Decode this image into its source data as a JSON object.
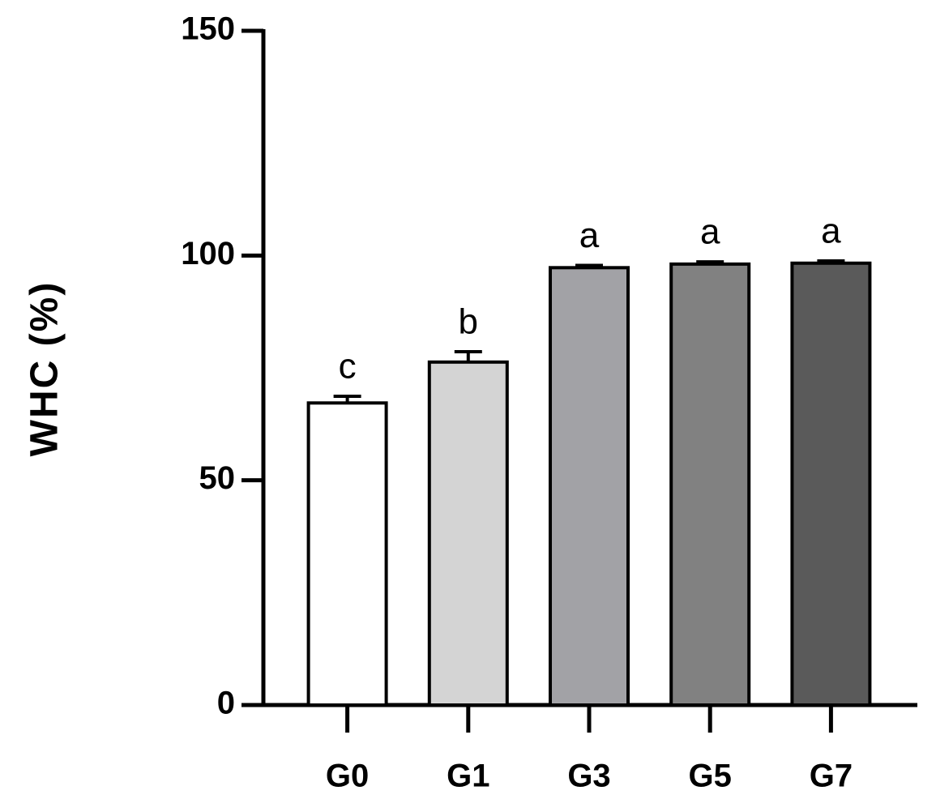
{
  "chart_data": {
    "type": "bar",
    "y_label": "WHC (%)",
    "categories": [
      "G0",
      "G1",
      "G3",
      "G5",
      "G7"
    ],
    "values": [
      67.2,
      76.3,
      97.3,
      98.1,
      98.3
    ],
    "errors": [
      1.5,
      2.3,
      0.5,
      0.5,
      0.5
    ],
    "significance": [
      "c",
      "b",
      "a",
      "a",
      "a"
    ],
    "colors": [
      "#ffffff",
      "#d4d4d4",
      "#a2a2a6",
      "#818181",
      "#5a5a5a"
    ],
    "ylim": [
      0,
      150
    ],
    "yticks": [
      0,
      50,
      100,
      150
    ],
    "grid": false
  }
}
